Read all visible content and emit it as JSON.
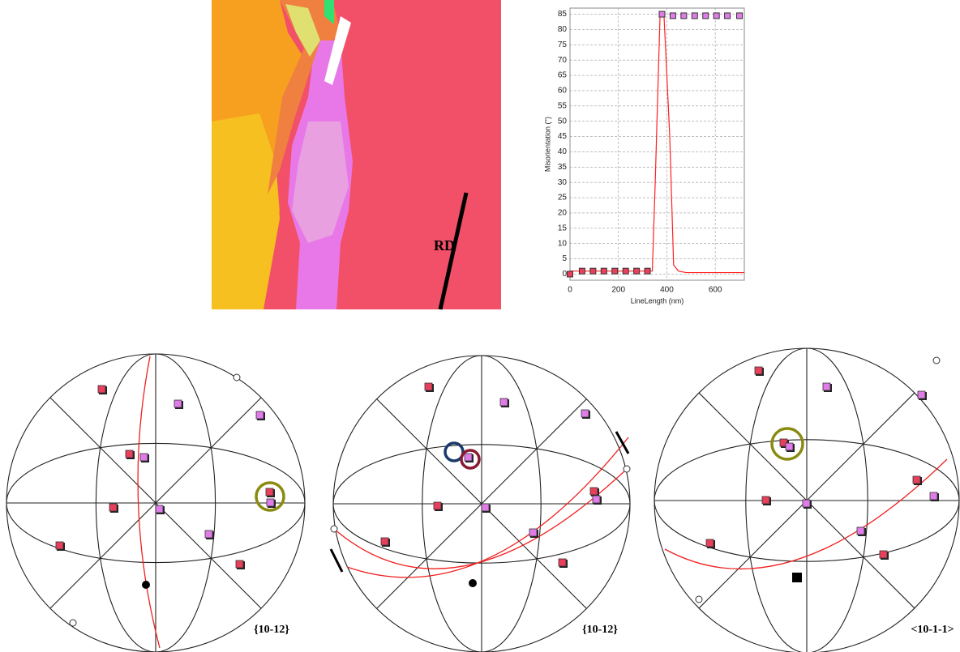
{
  "chart_data": {
    "type": "line",
    "x_label": "LineLength (nm)",
    "y_label": "Misorientation (°)",
    "xlim": [
      0,
      720
    ],
    "xticks": [
      0,
      200,
      400,
      600
    ],
    "ylim": [
      -2,
      87
    ],
    "yticks": [
      0,
      5,
      10,
      15,
      20,
      25,
      30,
      35,
      40,
      45,
      50,
      55,
      60,
      65,
      70,
      75,
      80,
      85
    ],
    "grid": true,
    "series": [
      {
        "style": "line",
        "color": "#ff2020",
        "x": [
          0,
          340,
          352,
          372,
          388,
          412,
          428,
          448,
          480,
          720
        ],
        "values": [
          1,
          1,
          30,
          85,
          85,
          45,
          3,
          1,
          0.5,
          0.5
        ]
      },
      {
        "style": "marker",
        "color": "#e8405c",
        "x": [
          0,
          50,
          95,
          140,
          185,
          230,
          275,
          320
        ],
        "values": [
          0,
          1,
          1,
          1,
          1,
          1,
          1,
          1
        ]
      },
      {
        "style": "marker",
        "color": "#e07ce8",
        "x": [
          380,
          425,
          470,
          515,
          560,
          605,
          650,
          700
        ],
        "values": [
          85,
          84.5,
          84.5,
          84.5,
          84.5,
          84.5,
          84.5,
          84.5
        ]
      }
    ]
  },
  "ebsd_map": {
    "label": "RD"
  },
  "pole_figures": [
    {
      "label": "{10-12}"
    },
    {
      "label": "{10-12}"
    },
    {
      "label": "<10-1-1>"
    }
  ]
}
